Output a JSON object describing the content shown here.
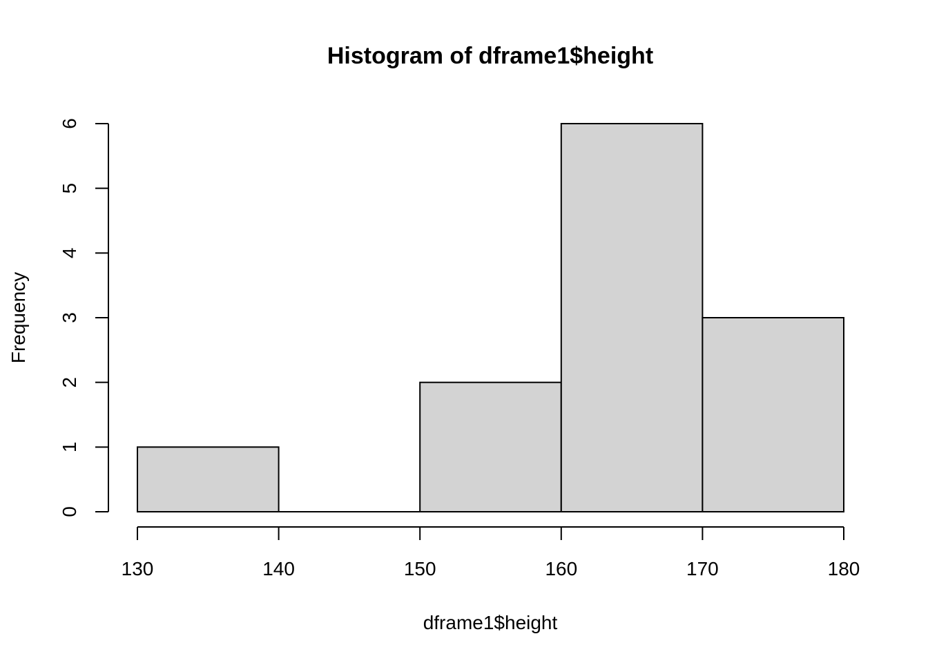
{
  "chart_data": {
    "type": "bar",
    "title": "Histogram of dframe1$height",
    "xlabel": "dframe1$height",
    "ylabel": "Frequency",
    "bins": [
      {
        "from": 130,
        "to": 140,
        "count": 1
      },
      {
        "from": 140,
        "to": 150,
        "count": 0
      },
      {
        "from": 150,
        "to": 160,
        "count": 2
      },
      {
        "from": 160,
        "to": 170,
        "count": 6
      },
      {
        "from": 170,
        "to": 180,
        "count": 3
      }
    ],
    "x_ticks": [
      130,
      140,
      150,
      160,
      170,
      180
    ],
    "y_ticks": [
      0,
      1,
      2,
      3,
      4,
      5,
      6
    ],
    "xlim": [
      130,
      180
    ],
    "ylim": [
      0,
      6
    ],
    "grid": false,
    "bar_fill": "#d3d3d3",
    "bar_stroke": "#000000"
  }
}
